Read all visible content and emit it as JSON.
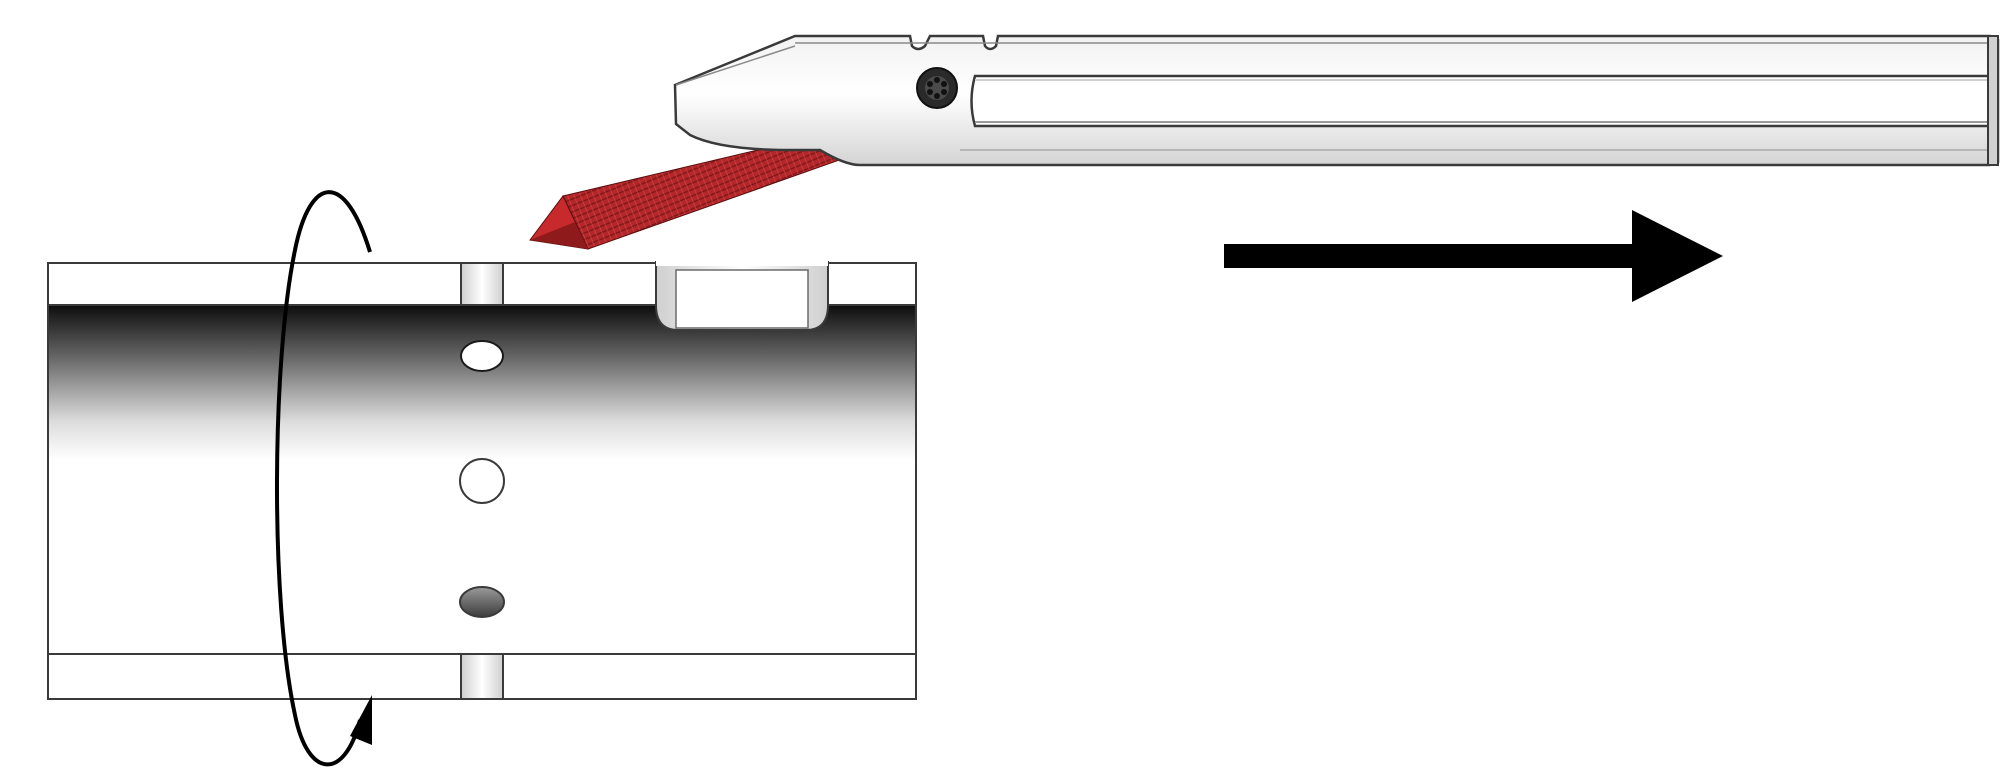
{
  "figure": {
    "components": [
      "boring-bar",
      "cutting-insert",
      "workpiece-tube",
      "feed-arrow",
      "rotation-arrow"
    ],
    "colors": {
      "background": "#ffffff",
      "outline": "#3a3a3a",
      "tool_body": "#e6e6e6",
      "tool_highlight": "#f7f7f7",
      "insert": "#b3272a",
      "insert_dark": "#7e1618",
      "arrow": "#000000",
      "bore_dark": "#111111"
    }
  }
}
